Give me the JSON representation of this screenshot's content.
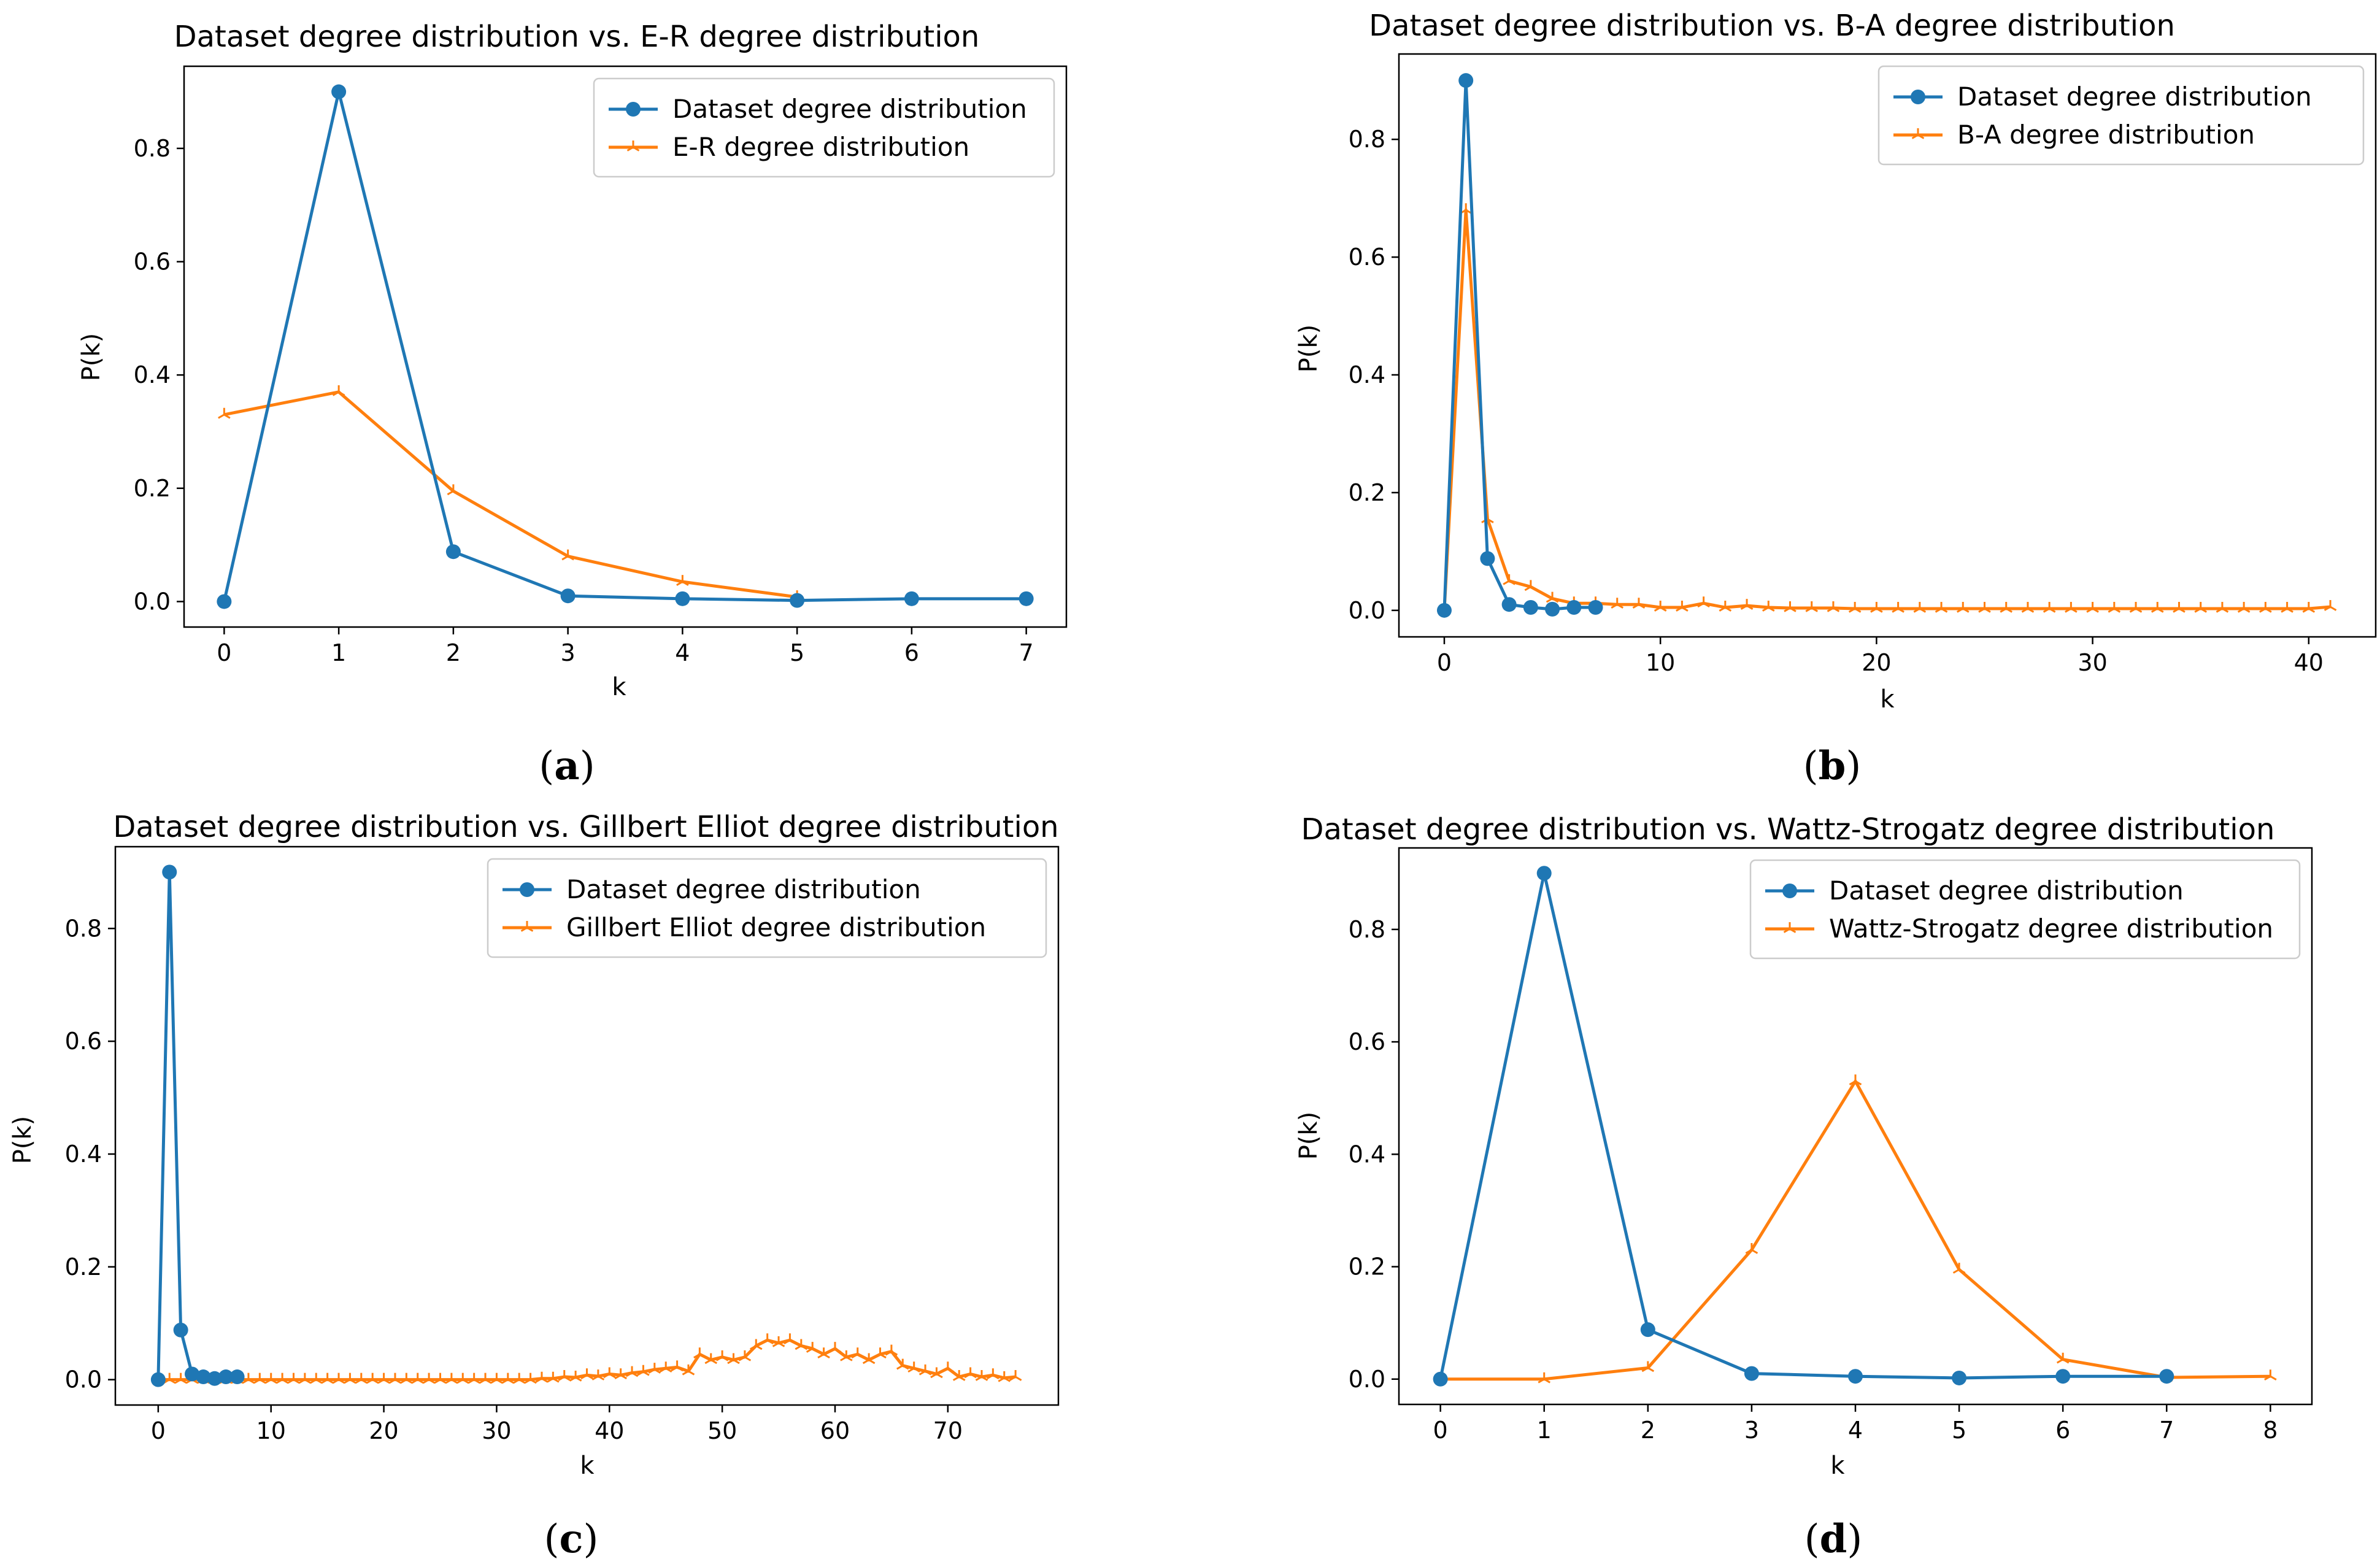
{
  "colors": {
    "dataset": "#1f77b4",
    "model": "#ff7f0e",
    "axes": "#000000",
    "legend_border": "#cccccc"
  },
  "chart_data": [
    {
      "id": "a",
      "type": "line",
      "caption_letter": "a",
      "title": "Dataset degree distribution vs. E-R degree distribution",
      "xlabel": "k",
      "ylabel": "P(k)",
      "xlim": [
        -0.35,
        7.35
      ],
      "ylim": [
        -0.045,
        0.945
      ],
      "xticks": [
        0,
        1,
        2,
        3,
        4,
        5,
        6,
        7
      ],
      "yticks": [
        0.0,
        0.2,
        0.4,
        0.6,
        0.8
      ],
      "legend_position": "top-right",
      "series": [
        {
          "name": "Dataset degree distribution",
          "marker": "circle",
          "color": "#1f77b4",
          "x": [
            0,
            1,
            2,
            3,
            4,
            5,
            6,
            7
          ],
          "y": [
            0.0,
            0.9,
            0.088,
            0.01,
            0.005,
            0.002,
            0.005,
            0.005
          ]
        },
        {
          "name": "E-R degree distribution",
          "marker": "tri",
          "color": "#ff7f0e",
          "x": [
            0,
            1,
            2,
            3,
            4,
            5
          ],
          "y": [
            0.33,
            0.37,
            0.195,
            0.08,
            0.035,
            0.008
          ]
        }
      ]
    },
    {
      "id": "b",
      "type": "line",
      "caption_letter": "b",
      "title": "Dataset degree distribution vs. B-A degree distribution",
      "xlabel": "k",
      "ylabel": "P(k)",
      "xlim": [
        -2.1,
        43.1
      ],
      "ylim": [
        -0.045,
        0.945
      ],
      "xticks": [
        0,
        10,
        20,
        30,
        40
      ],
      "yticks": [
        0.0,
        0.2,
        0.4,
        0.6,
        0.8
      ],
      "legend_position": "top-right",
      "series": [
        {
          "name": "Dataset degree distribution",
          "marker": "circle",
          "color": "#1f77b4",
          "x": [
            0,
            1,
            2,
            3,
            4,
            5,
            6,
            7
          ],
          "y": [
            0.0,
            0.9,
            0.088,
            0.01,
            0.005,
            0.002,
            0.005,
            0.005
          ]
        },
        {
          "name": "B-A degree distribution",
          "marker": "tri",
          "color": "#ff7f0e",
          "x": [
            0,
            1,
            2,
            3,
            4,
            5,
            6,
            7,
            8,
            9,
            10,
            11,
            12,
            13,
            14,
            15,
            16,
            17,
            18,
            19,
            20,
            21,
            22,
            23,
            24,
            25,
            26,
            27,
            28,
            29,
            30,
            31,
            32,
            33,
            34,
            35,
            36,
            37,
            38,
            39,
            40,
            41
          ],
          "y": [
            0.0,
            0.68,
            0.155,
            0.05,
            0.04,
            0.02,
            0.012,
            0.012,
            0.01,
            0.01,
            0.005,
            0.005,
            0.012,
            0.005,
            0.008,
            0.005,
            0.004,
            0.004,
            0.004,
            0.003,
            0.003,
            0.003,
            0.003,
            0.003,
            0.003,
            0.003,
            0.003,
            0.003,
            0.003,
            0.003,
            0.003,
            0.003,
            0.003,
            0.003,
            0.003,
            0.003,
            0.003,
            0.003,
            0.003,
            0.003,
            0.003,
            0.006
          ]
        }
      ]
    },
    {
      "id": "c",
      "type": "line",
      "caption_letter": "c",
      "title": "Dataset degree distribution vs. Gillbert Elliot degree distribution",
      "xlabel": "k",
      "ylabel": "P(k)",
      "xlim": [
        -3.8,
        79.8
      ],
      "ylim": [
        -0.045,
        0.945
      ],
      "xticks": [
        0,
        10,
        20,
        30,
        40,
        50,
        60,
        70
      ],
      "yticks": [
        0.0,
        0.2,
        0.4,
        0.6,
        0.8
      ],
      "legend_position": "top-right",
      "series": [
        {
          "name": "Dataset degree distribution",
          "marker": "circle",
          "color": "#1f77b4",
          "x": [
            0,
            1,
            2,
            3,
            4,
            5,
            6,
            7
          ],
          "y": [
            0.0,
            0.9,
            0.088,
            0.01,
            0.005,
            0.002,
            0.005,
            0.005
          ]
        },
        {
          "name": "Gillbert Elliot degree distribution",
          "marker": "tri",
          "color": "#ff7f0e",
          "x": [
            0,
            1,
            2,
            3,
            4,
            5,
            6,
            7,
            8,
            9,
            10,
            11,
            12,
            13,
            14,
            15,
            16,
            17,
            18,
            19,
            20,
            21,
            22,
            23,
            24,
            25,
            26,
            27,
            28,
            29,
            30,
            31,
            32,
            33,
            34,
            35,
            36,
            37,
            38,
            39,
            40,
            41,
            42,
            43,
            44,
            45,
            46,
            47,
            48,
            49,
            50,
            51,
            52,
            53,
            54,
            55,
            56,
            57,
            58,
            59,
            60,
            61,
            62,
            63,
            64,
            65,
            66,
            67,
            68,
            69,
            70,
            71,
            72,
            73,
            74,
            75,
            76
          ],
          "y": [
            0.0,
            0.0,
            0.0,
            0.0,
            0.0,
            0.0,
            0.0,
            0.0,
            0.0,
            0.0,
            0.0,
            0.0,
            0.0,
            0.0,
            0.0,
            0.0,
            0.0,
            0.0,
            0.0,
            0.0,
            0.0,
            0.0,
            0.0,
            0.0,
            0.0,
            0.0,
            0.0,
            0.0,
            0.0,
            0.0,
            0.0,
            0.0,
            0.0,
            0.0,
            0.002,
            0.002,
            0.005,
            0.004,
            0.008,
            0.006,
            0.01,
            0.008,
            0.012,
            0.014,
            0.018,
            0.02,
            0.022,
            0.015,
            0.045,
            0.035,
            0.04,
            0.035,
            0.04,
            0.06,
            0.07,
            0.065,
            0.07,
            0.06,
            0.055,
            0.045,
            0.055,
            0.04,
            0.045,
            0.035,
            0.045,
            0.05,
            0.025,
            0.02,
            0.015,
            0.01,
            0.02,
            0.005,
            0.01,
            0.005,
            0.008,
            0.003,
            0.005
          ]
        }
      ]
    },
    {
      "id": "d",
      "type": "line",
      "caption_letter": "d",
      "title": "Dataset degree distribution vs. Wattz-Strogatz degree distribution",
      "xlabel": "k",
      "ylabel": "P(k)",
      "xlim": [
        -0.4,
        8.4
      ],
      "ylim": [
        -0.045,
        0.945
      ],
      "xticks": [
        0,
        1,
        2,
        3,
        4,
        5,
        6,
        7,
        8
      ],
      "yticks": [
        0.0,
        0.2,
        0.4,
        0.6,
        0.8
      ],
      "legend_position": "top-right",
      "series": [
        {
          "name": "Dataset degree distribution",
          "marker": "circle",
          "color": "#1f77b4",
          "x": [
            0,
            1,
            2,
            3,
            4,
            5,
            6,
            7
          ],
          "y": [
            0.0,
            0.9,
            0.088,
            0.01,
            0.005,
            0.002,
            0.005,
            0.005
          ]
        },
        {
          "name": "Wattz-Strogatz degree distribution",
          "marker": "tri",
          "color": "#ff7f0e",
          "x": [
            0,
            1,
            2,
            3,
            4,
            5,
            6,
            7,
            8
          ],
          "y": [
            0.0,
            0.0,
            0.02,
            0.23,
            0.53,
            0.195,
            0.035,
            0.003,
            0.005
          ]
        }
      ]
    }
  ]
}
